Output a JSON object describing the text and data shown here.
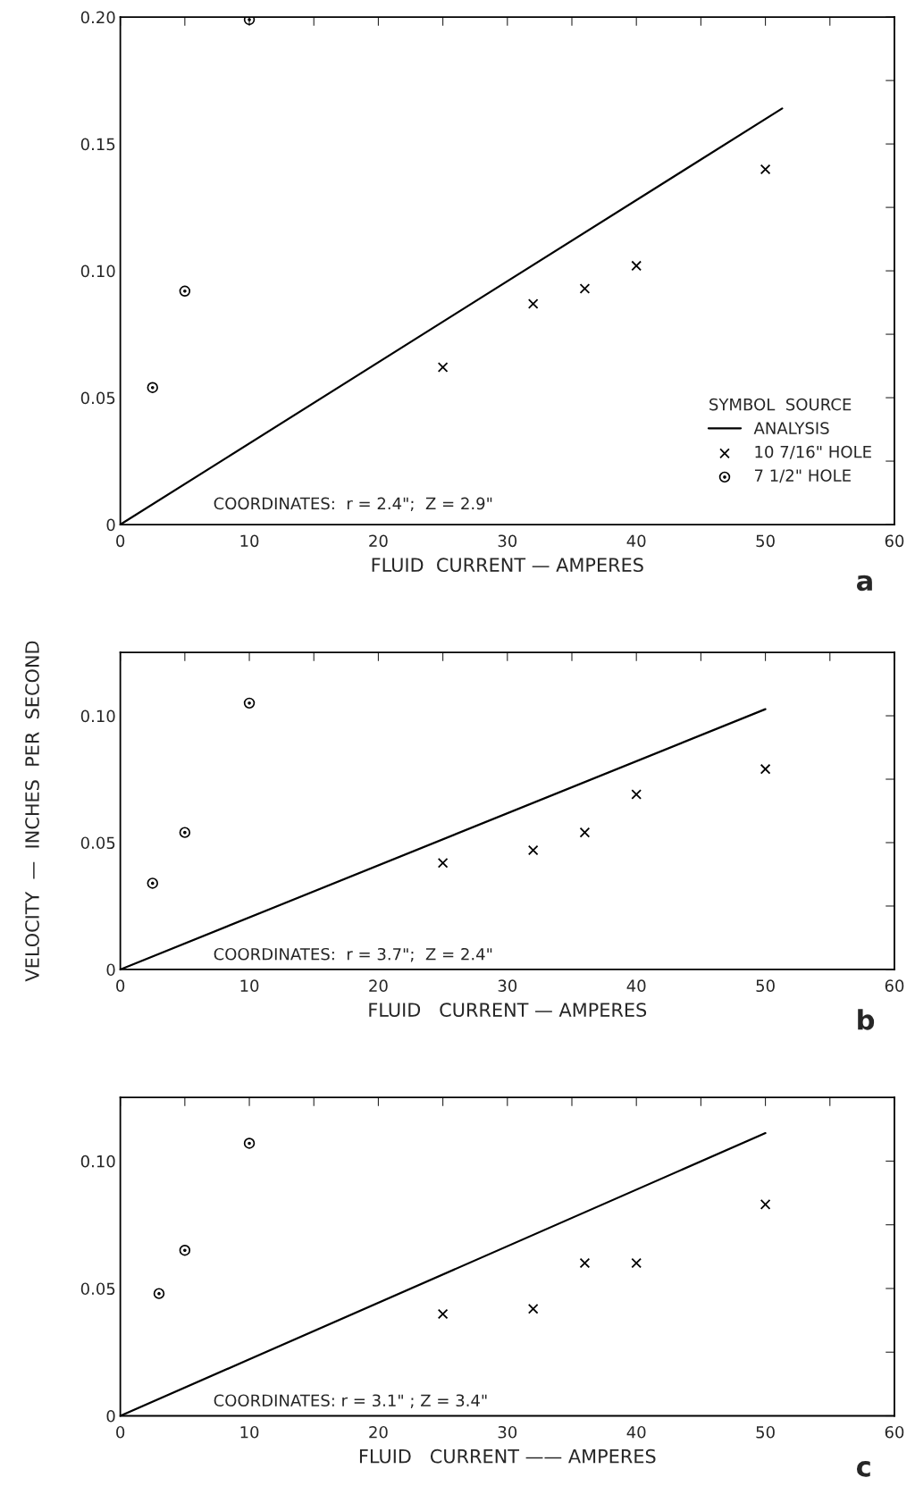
{
  "chart_data": [
    {
      "type": "scatter",
      "xlabel": "FLUID  CURRENT — AMPERES",
      "legend": "bottom right",
      "legend_title": "SYMBOL  SOURCE",
      "grid": false,
      "xlim": [
        0,
        60
      ],
      "xticks": [
        0,
        {
          "value": 5,
          "label": null
        },
        10,
        {
          "value": 15,
          "label": null
        },
        20,
        {
          "value": 25,
          "label": null
        },
        30,
        {
          "value": 35,
          "label": null
        },
        40,
        {
          "value": 45,
          "label": null
        },
        50,
        {
          "value": 55,
          "label": null
        },
        60
      ],
      "ylim": [
        0,
        0.2
      ],
      "yticks": [
        0,
        {
          "value": 0.025,
          "label": null
        },
        0.05,
        {
          "value": 0.075,
          "label": null
        },
        {
          "value": 0.1,
          "label": "0.10"
        },
        {
          "value": 0.125,
          "label": null
        },
        0.15,
        {
          "value": 0.175,
          "label": null
        },
        {
          "value": 0.2,
          "label": "0.20"
        }
      ],
      "annotations": [
        "COORDINATES:  r = 2.4\";  Z = 2.9\"",
        "a"
      ],
      "series": [
        {
          "name": "ANALYSIS",
          "type": "line",
          "marker": "none",
          "line_style": "solid",
          "color": "#000000",
          "x": [
            0,
            51.3
          ],
          "values": [
            0,
            0.164
          ]
        },
        {
          "name": "10 7/16\" HOLE",
          "marker": "cross",
          "color": "#000000",
          "x": [
            25,
            32,
            36,
            40,
            50
          ],
          "values": [
            0.062,
            0.087,
            0.093,
            0.102,
            0.14
          ]
        },
        {
          "name": "7 1/2\" HOLE",
          "marker": "circle",
          "color": "#000000",
          "x": [
            2.5,
            5,
            10
          ],
          "values": [
            0.054,
            0.092,
            0.199
          ]
        }
      ]
    },
    {
      "type": "scatter",
      "xlabel": "FLUID   CURRENT — AMPERES",
      "ylabel": "VELOCITY  —  INCHES  PER  SECOND",
      "grid": false,
      "xlim": [
        0,
        60
      ],
      "xticks": [
        0,
        {
          "value": 5,
          "label": null
        },
        10,
        {
          "value": 15,
          "label": null
        },
        20,
        {
          "value": 25,
          "label": null
        },
        30,
        {
          "value": 35,
          "label": null
        },
        40,
        {
          "value": 45,
          "label": null
        },
        50,
        {
          "value": 55,
          "label": null
        },
        60
      ],
      "ylim": [
        0,
        0.125
      ],
      "yticks": [
        0,
        {
          "value": 0.025,
          "label": null
        },
        0.05,
        {
          "value": 0.075,
          "label": null
        },
        {
          "value": 0.1,
          "label": "0.10"
        }
      ],
      "annotations": [
        "COORDINATES:  r = 3.7\";  Z = 2.4\"",
        "b"
      ],
      "series": [
        {
          "type": "line",
          "marker": "none",
          "line_style": "solid",
          "color": "#000000",
          "x": [
            0,
            50
          ],
          "values": [
            0,
            0.1026
          ]
        },
        {
          "marker": "cross",
          "color": "#000000",
          "x": [
            25,
            32,
            36,
            40,
            50
          ],
          "values": [
            0.042,
            0.047,
            0.054,
            0.069,
            0.079
          ]
        },
        {
          "marker": "circle",
          "color": "#000000",
          "x": [
            2.5,
            5,
            10
          ],
          "values": [
            0.034,
            0.054,
            0.105
          ]
        }
      ]
    },
    {
      "type": "scatter",
      "xlabel": "FLUID   CURRENT —— AMPERES",
      "grid": false,
      "xlim": [
        0,
        60
      ],
      "xticks": [
        0,
        {
          "value": 5,
          "label": null
        },
        10,
        {
          "value": 15,
          "label": null
        },
        20,
        {
          "value": 25,
          "label": null
        },
        30,
        {
          "value": 35,
          "label": null
        },
        40,
        {
          "value": 45,
          "label": null
        },
        50,
        {
          "value": 55,
          "label": null
        },
        60
      ],
      "ylim": [
        0,
        0.125
      ],
      "yticks": [
        0,
        {
          "value": 0.025,
          "label": null
        },
        0.05,
        {
          "value": 0.075,
          "label": null
        },
        {
          "value": 0.1,
          "label": "0.10"
        }
      ],
      "annotations": [
        "COORDINATES: r = 3.1\" ; Z = 3.4\"",
        "c"
      ],
      "series": [
        {
          "type": "line",
          "marker": "none",
          "line_style": "solid",
          "color": "#000000",
          "x": [
            0,
            50
          ],
          "values": [
            0,
            0.111
          ]
        },
        {
          "marker": "cross",
          "color": "#000000",
          "x": [
            25,
            32,
            36,
            40,
            50
          ],
          "values": [
            0.04,
            0.042,
            0.06,
            0.06,
            0.083
          ]
        },
        {
          "marker": "circle",
          "color": "#000000",
          "x": [
            3,
            5,
            10
          ],
          "values": [
            0.048,
            0.065,
            0.107
          ]
        }
      ]
    }
  ]
}
